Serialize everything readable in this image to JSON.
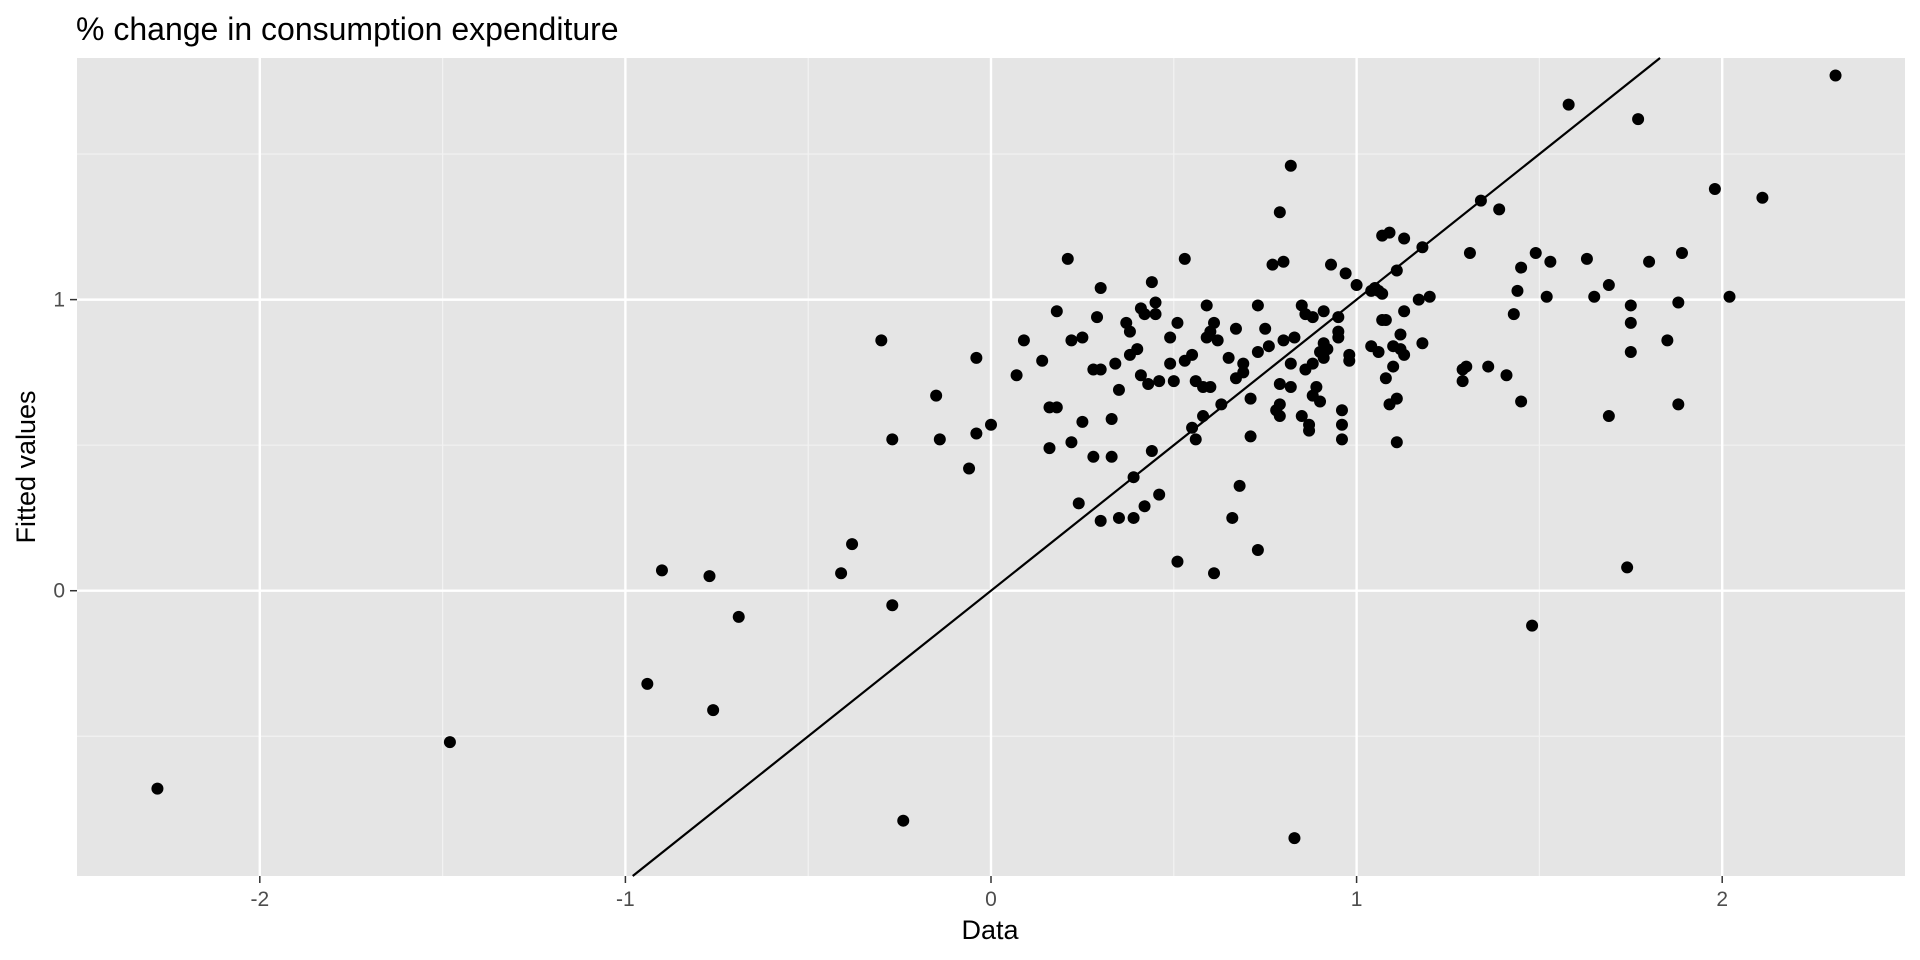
{
  "colors": {
    "panel_background": "#e5e5e5",
    "grid_major": "#ffffff",
    "grid_minor": "#f2f2f2",
    "points": "#000000",
    "reference_line": "#000000",
    "tick_text": "#4d4d4d"
  },
  "chart_data": {
    "type": "scatter",
    "title": "% change in consumption expenditure",
    "xlabel": "Data",
    "ylabel": "Fitted values",
    "xlim": [
      -2.5,
      2.5
    ],
    "ylim": [
      -0.98,
      1.83
    ],
    "x_ticks": [
      {
        "value": -2,
        "label": "-2"
      },
      {
        "value": -1,
        "label": "-1"
      },
      {
        "value": 0,
        "label": "0"
      },
      {
        "value": 1,
        "label": "1"
      },
      {
        "value": 2,
        "label": "2"
      }
    ],
    "y_ticks": [
      {
        "value": 0,
        "label": "0"
      },
      {
        "value": 1,
        "label": "1"
      }
    ],
    "minor_x": [
      -1.5,
      -0.5,
      0.5,
      1.5
    ],
    "minor_y": [
      -0.5,
      0.5,
      1.5
    ],
    "grid": true,
    "reference_line": {
      "slope": 1,
      "intercept": 0
    },
    "points": [
      [
        -2.28,
        -0.68
      ],
      [
        -1.48,
        -0.52
      ],
      [
        -0.94,
        -0.32
      ],
      [
        -0.9,
        0.07
      ],
      [
        -0.77,
        0.05
      ],
      [
        -0.76,
        -0.41
      ],
      [
        -0.69,
        -0.09
      ],
      [
        -0.41,
        0.06
      ],
      [
        -0.38,
        0.16
      ],
      [
        -0.3,
        0.86
      ],
      [
        -0.27,
        0.52
      ],
      [
        -0.27,
        -0.05
      ],
      [
        -0.24,
        -0.79
      ],
      [
        -0.15,
        0.67
      ],
      [
        -0.14,
        0.52
      ],
      [
        -0.06,
        0.42
      ],
      [
        -0.04,
        0.8
      ],
      [
        -0.04,
        0.54
      ],
      [
        0.0,
        0.57
      ],
      [
        0.07,
        0.74
      ],
      [
        0.09,
        0.86
      ],
      [
        0.14,
        0.79
      ],
      [
        0.16,
        0.63
      ],
      [
        0.16,
        0.49
      ],
      [
        0.18,
        0.96
      ],
      [
        0.18,
        0.63
      ],
      [
        0.21,
        1.14
      ],
      [
        0.22,
        0.86
      ],
      [
        0.22,
        0.51
      ],
      [
        0.24,
        0.3
      ],
      [
        0.25,
        0.87
      ],
      [
        0.25,
        0.58
      ],
      [
        0.28,
        0.76
      ],
      [
        0.28,
        0.46
      ],
      [
        0.29,
        0.94
      ],
      [
        0.3,
        1.04
      ],
      [
        0.3,
        0.76
      ],
      [
        0.3,
        0.24
      ],
      [
        0.33,
        0.59
      ],
      [
        0.33,
        0.46
      ],
      [
        0.34,
        0.78
      ],
      [
        0.35,
        0.69
      ],
      [
        0.35,
        0.25
      ],
      [
        0.37,
        0.92
      ],
      [
        0.38,
        0.89
      ],
      [
        0.38,
        0.81
      ],
      [
        0.39,
        0.39
      ],
      [
        0.39,
        0.25
      ],
      [
        0.4,
        0.83
      ],
      [
        0.41,
        0.97
      ],
      [
        0.41,
        0.74
      ],
      [
        0.42,
        0.95
      ],
      [
        0.42,
        0.29
      ],
      [
        0.43,
        0.71
      ],
      [
        0.44,
        1.06
      ],
      [
        0.44,
        0.48
      ],
      [
        0.45,
        0.99
      ],
      [
        0.45,
        0.95
      ],
      [
        0.46,
        0.72
      ],
      [
        0.46,
        0.33
      ],
      [
        0.49,
        0.87
      ],
      [
        0.49,
        0.78
      ],
      [
        0.5,
        0.72
      ],
      [
        0.51,
        0.92
      ],
      [
        0.51,
        0.1
      ],
      [
        0.53,
        1.14
      ],
      [
        0.53,
        0.79
      ],
      [
        0.55,
        0.81
      ],
      [
        0.55,
        0.56
      ],
      [
        0.56,
        0.72
      ],
      [
        0.56,
        0.52
      ],
      [
        0.58,
        0.7
      ],
      [
        0.58,
        0.6
      ],
      [
        0.59,
        0.98
      ],
      [
        0.59,
        0.87
      ],
      [
        0.6,
        0.89
      ],
      [
        0.6,
        0.7
      ],
      [
        0.61,
        0.92
      ],
      [
        0.61,
        0.06
      ],
      [
        0.62,
        0.86
      ],
      [
        0.63,
        0.64
      ],
      [
        0.65,
        0.8
      ],
      [
        0.66,
        0.25
      ],
      [
        0.67,
        0.9
      ],
      [
        0.67,
        0.73
      ],
      [
        0.68,
        0.36
      ],
      [
        0.69,
        0.78
      ],
      [
        0.69,
        0.75
      ],
      [
        0.71,
        0.66
      ],
      [
        0.71,
        0.53
      ],
      [
        0.73,
        0.98
      ],
      [
        0.73,
        0.82
      ],
      [
        0.73,
        0.14
      ],
      [
        0.75,
        0.9
      ],
      [
        0.76,
        0.84
      ],
      [
        0.77,
        1.12
      ],
      [
        0.78,
        0.62
      ],
      [
        0.79,
        1.3
      ],
      [
        0.79,
        0.71
      ],
      [
        0.79,
        0.64
      ],
      [
        0.79,
        0.6
      ],
      [
        0.8,
        1.13
      ],
      [
        0.8,
        0.86
      ],
      [
        0.82,
        0.78
      ],
      [
        0.82,
        0.7
      ],
      [
        0.82,
        1.46
      ],
      [
        0.83,
        0.87
      ],
      [
        0.83,
        -0.85
      ],
      [
        0.85,
        0.98
      ],
      [
        0.85,
        0.6
      ],
      [
        0.86,
        0.95
      ],
      [
        0.86,
        0.76
      ],
      [
        0.87,
        0.57
      ],
      [
        0.87,
        0.55
      ],
      [
        0.88,
        0.94
      ],
      [
        0.88,
        0.78
      ],
      [
        0.88,
        0.67
      ],
      [
        0.89,
        0.7
      ],
      [
        0.9,
        0.82
      ],
      [
        0.9,
        0.65
      ],
      [
        0.91,
        0.96
      ],
      [
        0.91,
        0.85
      ],
      [
        0.91,
        0.8
      ],
      [
        0.92,
        0.83
      ],
      [
        0.93,
        1.12
      ],
      [
        0.95,
        0.94
      ],
      [
        0.95,
        0.89
      ],
      [
        0.95,
        0.87
      ],
      [
        0.96,
        0.62
      ],
      [
        0.96,
        0.57
      ],
      [
        0.96,
        0.52
      ],
      [
        0.97,
        1.09
      ],
      [
        0.98,
        0.81
      ],
      [
        0.98,
        0.79
      ],
      [
        1.0,
        1.05
      ],
      [
        1.04,
        1.03
      ],
      [
        1.04,
        0.84
      ],
      [
        1.05,
        1.04
      ],
      [
        1.06,
        0.82
      ],
      [
        1.06,
        1.03
      ],
      [
        1.07,
        1.22
      ],
      [
        1.07,
        0.93
      ],
      [
        1.07,
        1.02
      ],
      [
        1.08,
        0.93
      ],
      [
        1.08,
        0.73
      ],
      [
        1.09,
        1.23
      ],
      [
        1.09,
        0.64
      ],
      [
        1.1,
        0.84
      ],
      [
        1.1,
        0.77
      ],
      [
        1.11,
        1.1
      ],
      [
        1.11,
        0.66
      ],
      [
        1.11,
        0.51
      ],
      [
        1.12,
        0.83
      ],
      [
        1.12,
        0.88
      ],
      [
        1.13,
        1.21
      ],
      [
        1.13,
        0.96
      ],
      [
        1.13,
        0.81
      ],
      [
        1.17,
        1.0
      ],
      [
        1.18,
        1.18
      ],
      [
        1.18,
        0.85
      ],
      [
        1.2,
        1.01
      ],
      [
        1.29,
        0.76
      ],
      [
        1.29,
        0.72
      ],
      [
        1.3,
        0.77
      ],
      [
        1.31,
        1.16
      ],
      [
        1.34,
        1.34
      ],
      [
        1.36,
        0.77
      ],
      [
        1.39,
        1.31
      ],
      [
        1.41,
        0.74
      ],
      [
        1.43,
        0.95
      ],
      [
        1.44,
        1.03
      ],
      [
        1.45,
        0.65
      ],
      [
        1.45,
        1.11
      ],
      [
        1.48,
        -0.12
      ],
      [
        1.49,
        1.16
      ],
      [
        1.52,
        1.01
      ],
      [
        1.53,
        1.13
      ],
      [
        1.58,
        1.67
      ],
      [
        1.63,
        1.14
      ],
      [
        1.65,
        1.01
      ],
      [
        1.69,
        1.05
      ],
      [
        1.69,
        0.6
      ],
      [
        1.74,
        0.08
      ],
      [
        1.75,
        0.98
      ],
      [
        1.75,
        0.92
      ],
      [
        1.75,
        0.82
      ],
      [
        1.77,
        1.62
      ],
      [
        1.8,
        1.13
      ],
      [
        1.85,
        0.86
      ],
      [
        1.88,
        0.99
      ],
      [
        1.88,
        0.64
      ],
      [
        1.89,
        1.16
      ],
      [
        1.98,
        1.38
      ],
      [
        2.02,
        1.01
      ],
      [
        2.11,
        1.35
      ],
      [
        2.31,
        1.77
      ]
    ]
  }
}
